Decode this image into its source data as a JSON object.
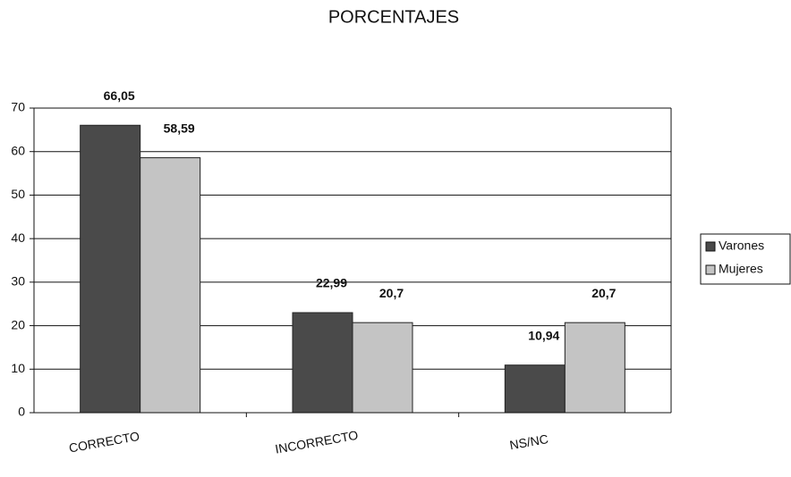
{
  "chart_data": {
    "type": "bar",
    "title": "PORCENTAJES",
    "categories": [
      "CORRECTO",
      "INCORRECTO",
      "NS/NC"
    ],
    "series": [
      {
        "name": "Varones",
        "color": "#4a4a4a",
        "values": [
          66.05,
          22.99,
          10.94
        ],
        "value_labels": [
          "66,05",
          "22,99",
          "10,94"
        ]
      },
      {
        "name": "Mujeres",
        "color": "#c4c4c4",
        "values": [
          58.59,
          20.7,
          20.7
        ],
        "value_labels": [
          "58,59",
          "20,7",
          "20,7"
        ]
      }
    ],
    "ylim": [
      0,
      70
    ],
    "yticks": [
      0,
      10,
      20,
      30,
      40,
      50,
      60,
      70
    ],
    "grid": true,
    "legend": "right"
  }
}
